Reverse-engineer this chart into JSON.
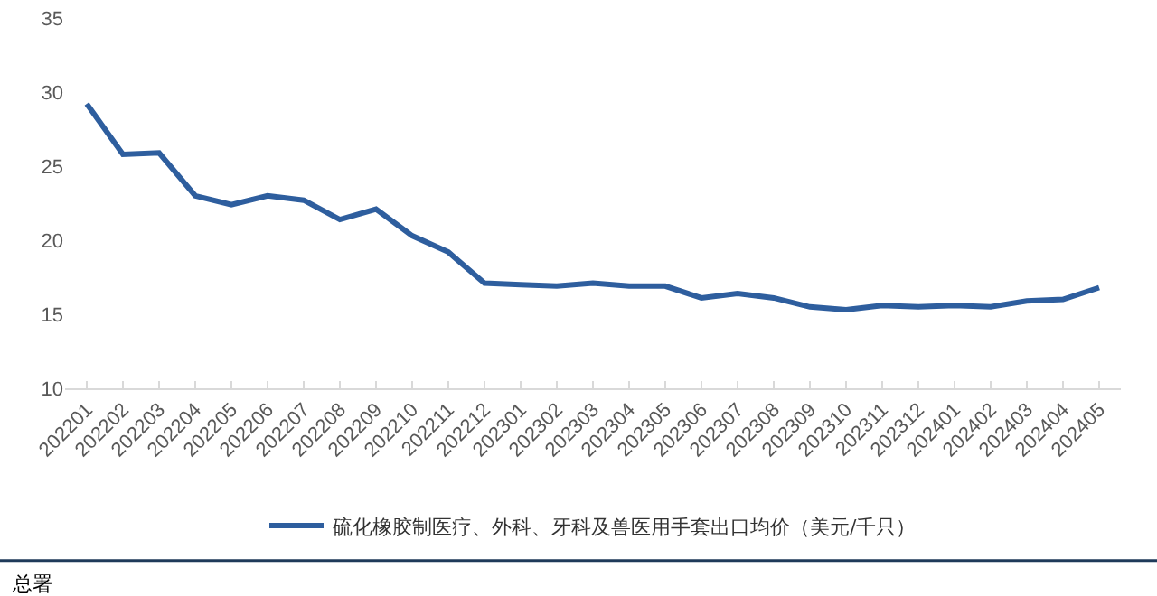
{
  "chart_data": {
    "type": "line",
    "categories": [
      "202201",
      "202202",
      "202203",
      "202204",
      "202205",
      "202206",
      "202207",
      "202208",
      "202209",
      "202210",
      "202211",
      "202212",
      "202301",
      "202302",
      "202303",
      "202304",
      "202305",
      "202306",
      "202307",
      "202308",
      "202309",
      "202310",
      "202311",
      "202312",
      "202401",
      "202402",
      "202403",
      "202404",
      "202405"
    ],
    "series": [
      {
        "name": "硫化橡胶制医疗、外科、牙科及兽医用手套出口均价（美元/千只）",
        "color": "#2e5e9e",
        "values": [
          29.2,
          25.8,
          25.9,
          23.0,
          22.4,
          23.0,
          22.7,
          21.4,
          22.1,
          20.3,
          19.2,
          17.1,
          17.0,
          16.9,
          17.1,
          16.9,
          16.9,
          16.1,
          16.4,
          16.1,
          15.5,
          15.3,
          15.6,
          15.5,
          15.6,
          15.5,
          15.9,
          16.0,
          16.8
        ]
      }
    ],
    "ylim": [
      10,
      35
    ],
    "yticks": [
      10,
      15,
      20,
      25,
      30,
      35
    ],
    "grid": false,
    "legend": "bottom",
    "marker": "none",
    "line_style": "solid",
    "annotations": [
      "总署"
    ]
  }
}
